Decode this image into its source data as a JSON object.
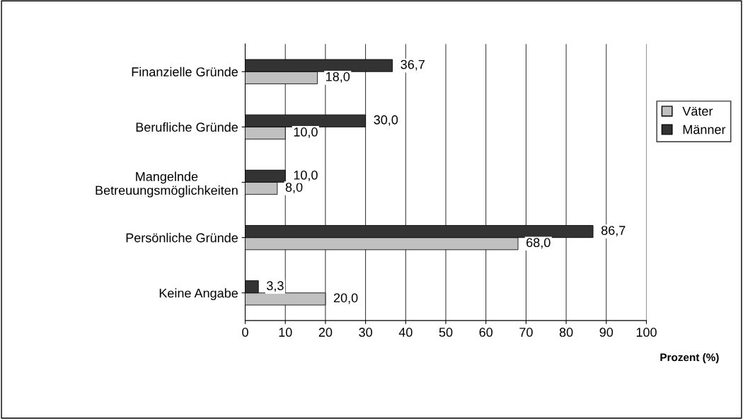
{
  "chart_data": {
    "type": "bar",
    "orientation": "horizontal",
    "xlabel": "Prozent (%)",
    "categories": [
      "Finanzielle Gründe",
      "Berufliche Gründe",
      "Mangelnde\nBetreuungsmöglichkeiten",
      "Persönliche Gründe",
      "Keine Angabe"
    ],
    "series": [
      {
        "name": "Väter",
        "color": "#c0c0c0",
        "values": [
          18.0,
          10.0,
          8.0,
          68.0,
          20.0
        ],
        "value_labels": [
          "18,0",
          "10,0",
          "8,0",
          "68,0",
          "20,0"
        ]
      },
      {
        "name": "Männer",
        "color": "#333333",
        "values": [
          36.7,
          30.0,
          10.0,
          86.7,
          3.3
        ],
        "value_labels": [
          "36,7",
          "30,0",
          "10,0",
          "86,7",
          "3,3"
        ]
      }
    ],
    "xlim": [
      0,
      100
    ],
    "xticks": [
      0,
      10,
      20,
      30,
      40,
      50,
      60,
      70,
      80,
      90,
      100
    ],
    "grid": "x",
    "legend": "right"
  }
}
